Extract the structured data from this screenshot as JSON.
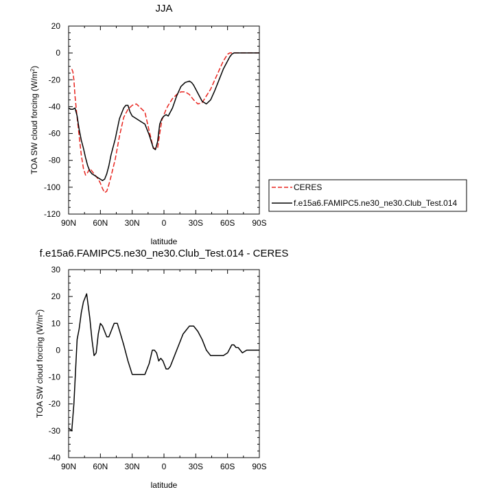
{
  "chart_data": [
    {
      "type": "line",
      "title": "JJA",
      "xlabel": "latitude",
      "ylabel_main": "TOA SW cloud forcing (W/m",
      "ylabel_sup": "2",
      "ylabel_close": ")",
      "xlim": [
        90,
        -90
      ],
      "ylim": [
        -120,
        20
      ],
      "xtick_values": [
        90,
        60,
        30,
        0,
        -30,
        -60,
        -90
      ],
      "xtick_labels": [
        "90N",
        "60N",
        "30N",
        "0",
        "30S",
        "60S",
        "90S"
      ],
      "ytick_values": [
        20,
        0,
        -20,
        -40,
        -60,
        -80,
        -100,
        -120
      ],
      "ytick_labels": [
        "20",
        "0",
        "-20",
        "-40",
        "-60",
        "-80",
        "-100",
        "-120"
      ],
      "grid": false,
      "legend_position": "right",
      "series": [
        {
          "name": "CERES",
          "color": "#e8221c",
          "dash": "dashed",
          "x": [
            87,
            86,
            85,
            84,
            82,
            80,
            78,
            76,
            74,
            72,
            70,
            66,
            62,
            60,
            58,
            56,
            54,
            52,
            50,
            46,
            42,
            38,
            34,
            30,
            26,
            22,
            18,
            14,
            10,
            6,
            4,
            2,
            0,
            -2,
            -4,
            -8,
            -12,
            -16,
            -20,
            -24,
            -28,
            -32,
            -36,
            -40,
            -44,
            -48,
            -52,
            -56,
            -60,
            -62,
            -64,
            -66,
            -68,
            -70,
            -74,
            -78,
            -82,
            -86,
            -90
          ],
          "y": [
            -12,
            -14,
            -20,
            -32,
            -48,
            -62,
            -76,
            -86,
            -91,
            -89,
            -86,
            -90,
            -94,
            -97,
            -101,
            -104,
            -103,
            -98,
            -92,
            -79,
            -62,
            -48,
            -42,
            -39,
            -38,
            -41,
            -44,
            -58,
            -71,
            -71,
            -60,
            -50,
            -46,
            -42,
            -39,
            -34,
            -31,
            -29,
            -29,
            -31,
            -35,
            -38,
            -37,
            -32,
            -27,
            -20,
            -13,
            -6,
            -1,
            0,
            0,
            0,
            0,
            0,
            0,
            0,
            0,
            0,
            0
          ]
        },
        {
          "name": "f.e15a6.FAMIPC5.ne30_ne30.Club_Test.014",
          "color": "#000000",
          "dash": "solid",
          "x": [
            90,
            88,
            86,
            84,
            82,
            80,
            78,
            76,
            74,
            72,
            70,
            68,
            66,
            62,
            58,
            56,
            54,
            52,
            50,
            46,
            42,
            38,
            36,
            34,
            32,
            30,
            26,
            22,
            18,
            14,
            10,
            8,
            6,
            4,
            2,
            0,
            -2,
            -4,
            -8,
            -12,
            -16,
            -20,
            -24,
            -26,
            -28,
            -32,
            -36,
            -40,
            -44,
            -48,
            -52,
            -56,
            -60,
            -62,
            -64,
            -66,
            -68,
            -70,
            -74,
            -78,
            -82,
            -86,
            -90
          ],
          "y": [
            -41,
            -42,
            -42,
            -41,
            -47,
            -57,
            -65,
            -71,
            -78,
            -84,
            -88,
            -90,
            -91,
            -93,
            -95,
            -94,
            -90,
            -84,
            -76,
            -64,
            -49,
            -41,
            -39,
            -39,
            -44,
            -47,
            -49,
            -51,
            -53,
            -61,
            -71,
            -72,
            -66,
            -53,
            -49,
            -47,
            -46,
            -47,
            -41,
            -32,
            -25,
            -22,
            -21,
            -22,
            -24,
            -30,
            -36,
            -38,
            -35,
            -28,
            -20,
            -12,
            -6,
            -3,
            -1,
            0,
            0,
            0,
            0,
            0,
            0,
            0,
            0
          ]
        }
      ]
    },
    {
      "type": "line",
      "title": "f.e15a6.FAMIPC5.ne30_ne30.Club_Test.014 - CERES",
      "xlabel": "latitude",
      "ylabel_main": "TOA SW cloud forcing (W/m",
      "ylabel_sup": "2",
      "ylabel_close": ")",
      "xlim": [
        90,
        -90
      ],
      "ylim": [
        -40,
        30
      ],
      "xtick_values": [
        90,
        60,
        30,
        0,
        -30,
        -60,
        -90
      ],
      "xtick_labels": [
        "90N",
        "60N",
        "30N",
        "0",
        "30S",
        "60S",
        "90S"
      ],
      "ytick_values": [
        30,
        20,
        10,
        0,
        -10,
        -20,
        -30,
        -40
      ],
      "ytick_labels": [
        "30",
        "20",
        "10",
        "0",
        "-10",
        "-20",
        "-30",
        "-40"
      ],
      "grid": false,
      "series": [
        {
          "name": "",
          "color": "#000000",
          "dash": "solid",
          "x": [
            90,
            87,
            85,
            82,
            80,
            78,
            76,
            73,
            70,
            68,
            66,
            64,
            62,
            60,
            58,
            56,
            54,
            52,
            50,
            47,
            44,
            41,
            38,
            34,
            30,
            26,
            22,
            18,
            14,
            11,
            9,
            7,
            5,
            3,
            1,
            0,
            -2,
            -4,
            -6,
            -10,
            -14,
            -18,
            -20,
            -24,
            -28,
            -32,
            -36,
            -40,
            -42,
            -44,
            -48,
            -52,
            -56,
            -60,
            -64,
            -66,
            -68,
            -70,
            -72,
            -74,
            -78,
            -82,
            -86,
            -90
          ],
          "y": [
            -29,
            -30,
            -20,
            4,
            8,
            14,
            18,
            21,
            12,
            4,
            -2,
            -1,
            6,
            10,
            9,
            7,
            5,
            5,
            7,
            10,
            10,
            6,
            2,
            -4,
            -9,
            -9,
            -9,
            -9,
            -5,
            0,
            0,
            -1,
            -4,
            -3,
            -4,
            -5,
            -7,
            -7,
            -6,
            -2,
            2,
            6,
            7,
            9,
            9,
            7,
            4,
            0,
            -1,
            -2,
            -2,
            -2,
            -2,
            -1,
            2,
            2,
            1,
            1,
            0,
            -1,
            0,
            0,
            0,
            0
          ]
        }
      ]
    }
  ]
}
